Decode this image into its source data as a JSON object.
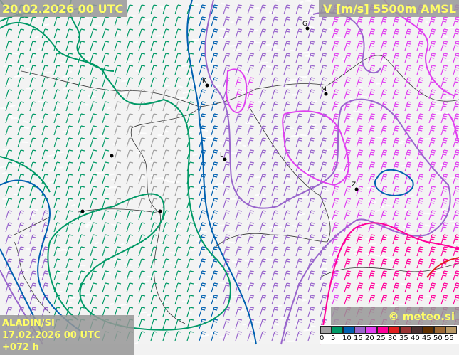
{
  "header": {
    "valid_time": "20.02.2026 00 UTC",
    "field": "V [m/s] 5500m AMSL"
  },
  "footer": {
    "model": "ALADIN/SI",
    "run": "17.02.2026 00 UTC +072 h",
    "copyright": "© meteo.si"
  },
  "legend": {
    "colors": [
      "#a0a0a0",
      "#009966",
      "#0060b0",
      "#9966cc",
      "#e040f0",
      "#ff0099",
      "#e02020",
      "#993333",
      "#4a3030",
      "#603000",
      "#996633",
      "#b89966"
    ],
    "ticks": [
      "0",
      "5",
      "10",
      "15",
      "20",
      "25",
      "30",
      "35",
      "40",
      "45",
      "50",
      "55"
    ]
  },
  "map": {
    "cities": [
      "G",
      "K",
      "M",
      "L",
      "Z"
    ]
  }
}
